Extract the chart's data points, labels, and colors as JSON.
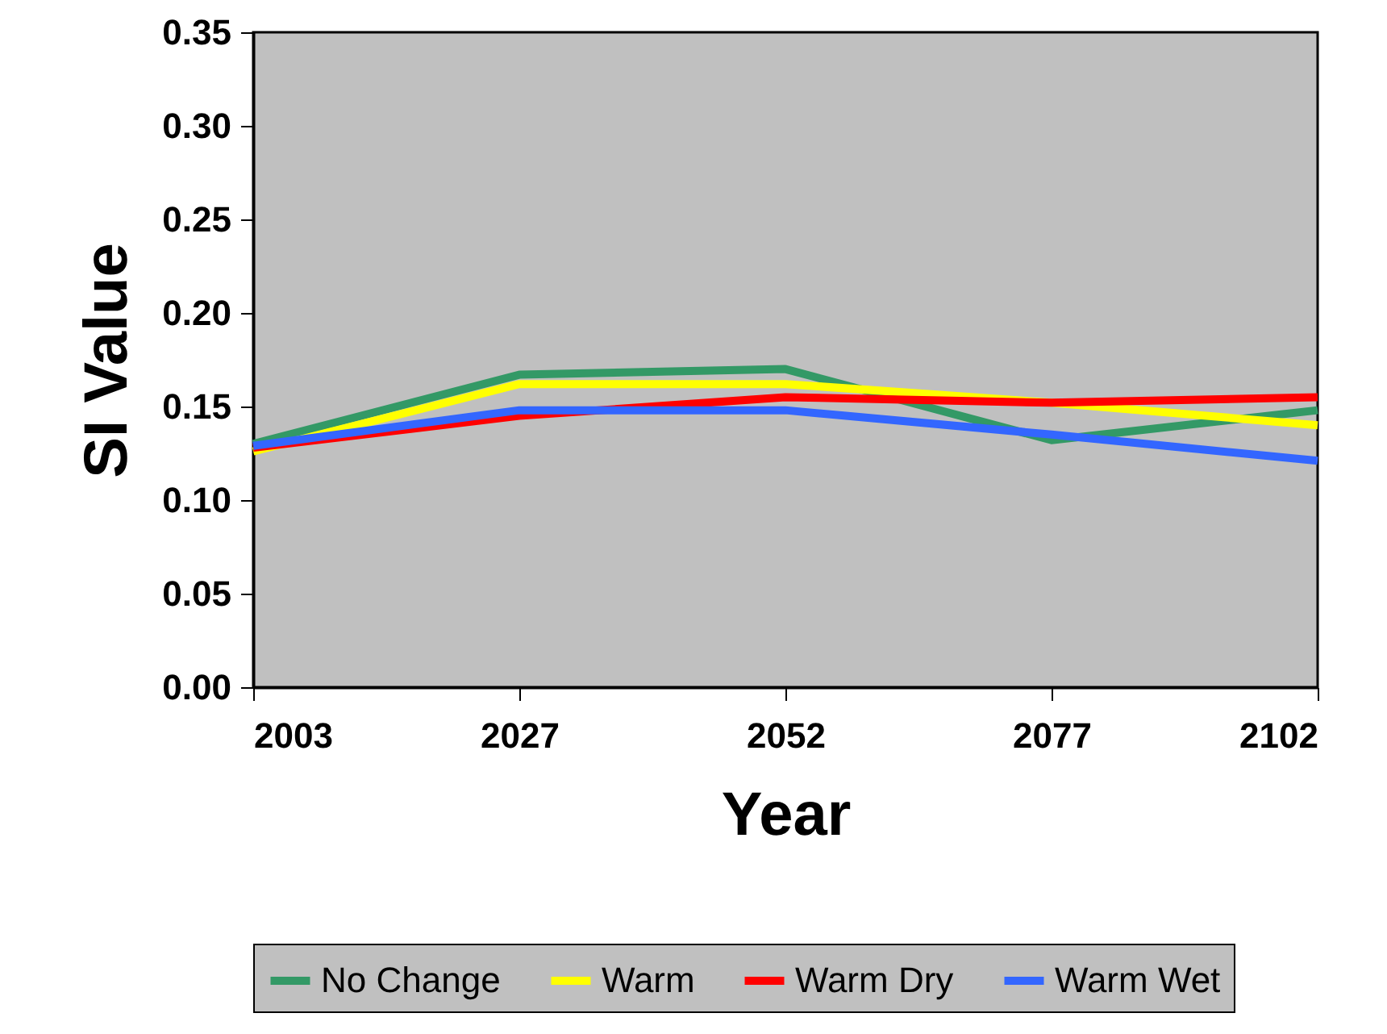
{
  "chart_data": {
    "type": "line",
    "xlabel": "Year",
    "ylabel": "SI Value",
    "categories": [
      "2003",
      "2027",
      "2052",
      "2077",
      "2102"
    ],
    "series": [
      {
        "name": "No Change",
        "color": "#339966",
        "values": [
          0.13,
          0.167,
          0.17,
          0.132,
          0.148
        ]
      },
      {
        "name": "Warm",
        "color": "#ffff00",
        "values": [
          0.126,
          0.162,
          0.162,
          0.152,
          0.14
        ]
      },
      {
        "name": "Warm Dry",
        "color": "#ff0000",
        "values": [
          0.128,
          0.145,
          0.155,
          0.152,
          0.155
        ]
      },
      {
        "name": "Warm Wet",
        "color": "#3366ff",
        "values": [
          0.129,
          0.148,
          0.148,
          0.135,
          0.121
        ]
      }
    ],
    "ylim": [
      0,
      0.35
    ],
    "yticks": [
      {
        "value": 0,
        "label": "0.00"
      },
      {
        "value": 0.05,
        "label": "0.05"
      },
      {
        "value": 0.1,
        "label": "0.10"
      },
      {
        "value": 0.15,
        "label": "0.15"
      },
      {
        "value": 0.2,
        "label": "0.20"
      },
      {
        "value": 0.25,
        "label": "0.25"
      },
      {
        "value": 0.3,
        "label": "0.30"
      },
      {
        "value": 0.35,
        "label": "0.35"
      }
    ],
    "legend": "bottom",
    "grid": false,
    "marker": "none",
    "line_style": "solid"
  }
}
